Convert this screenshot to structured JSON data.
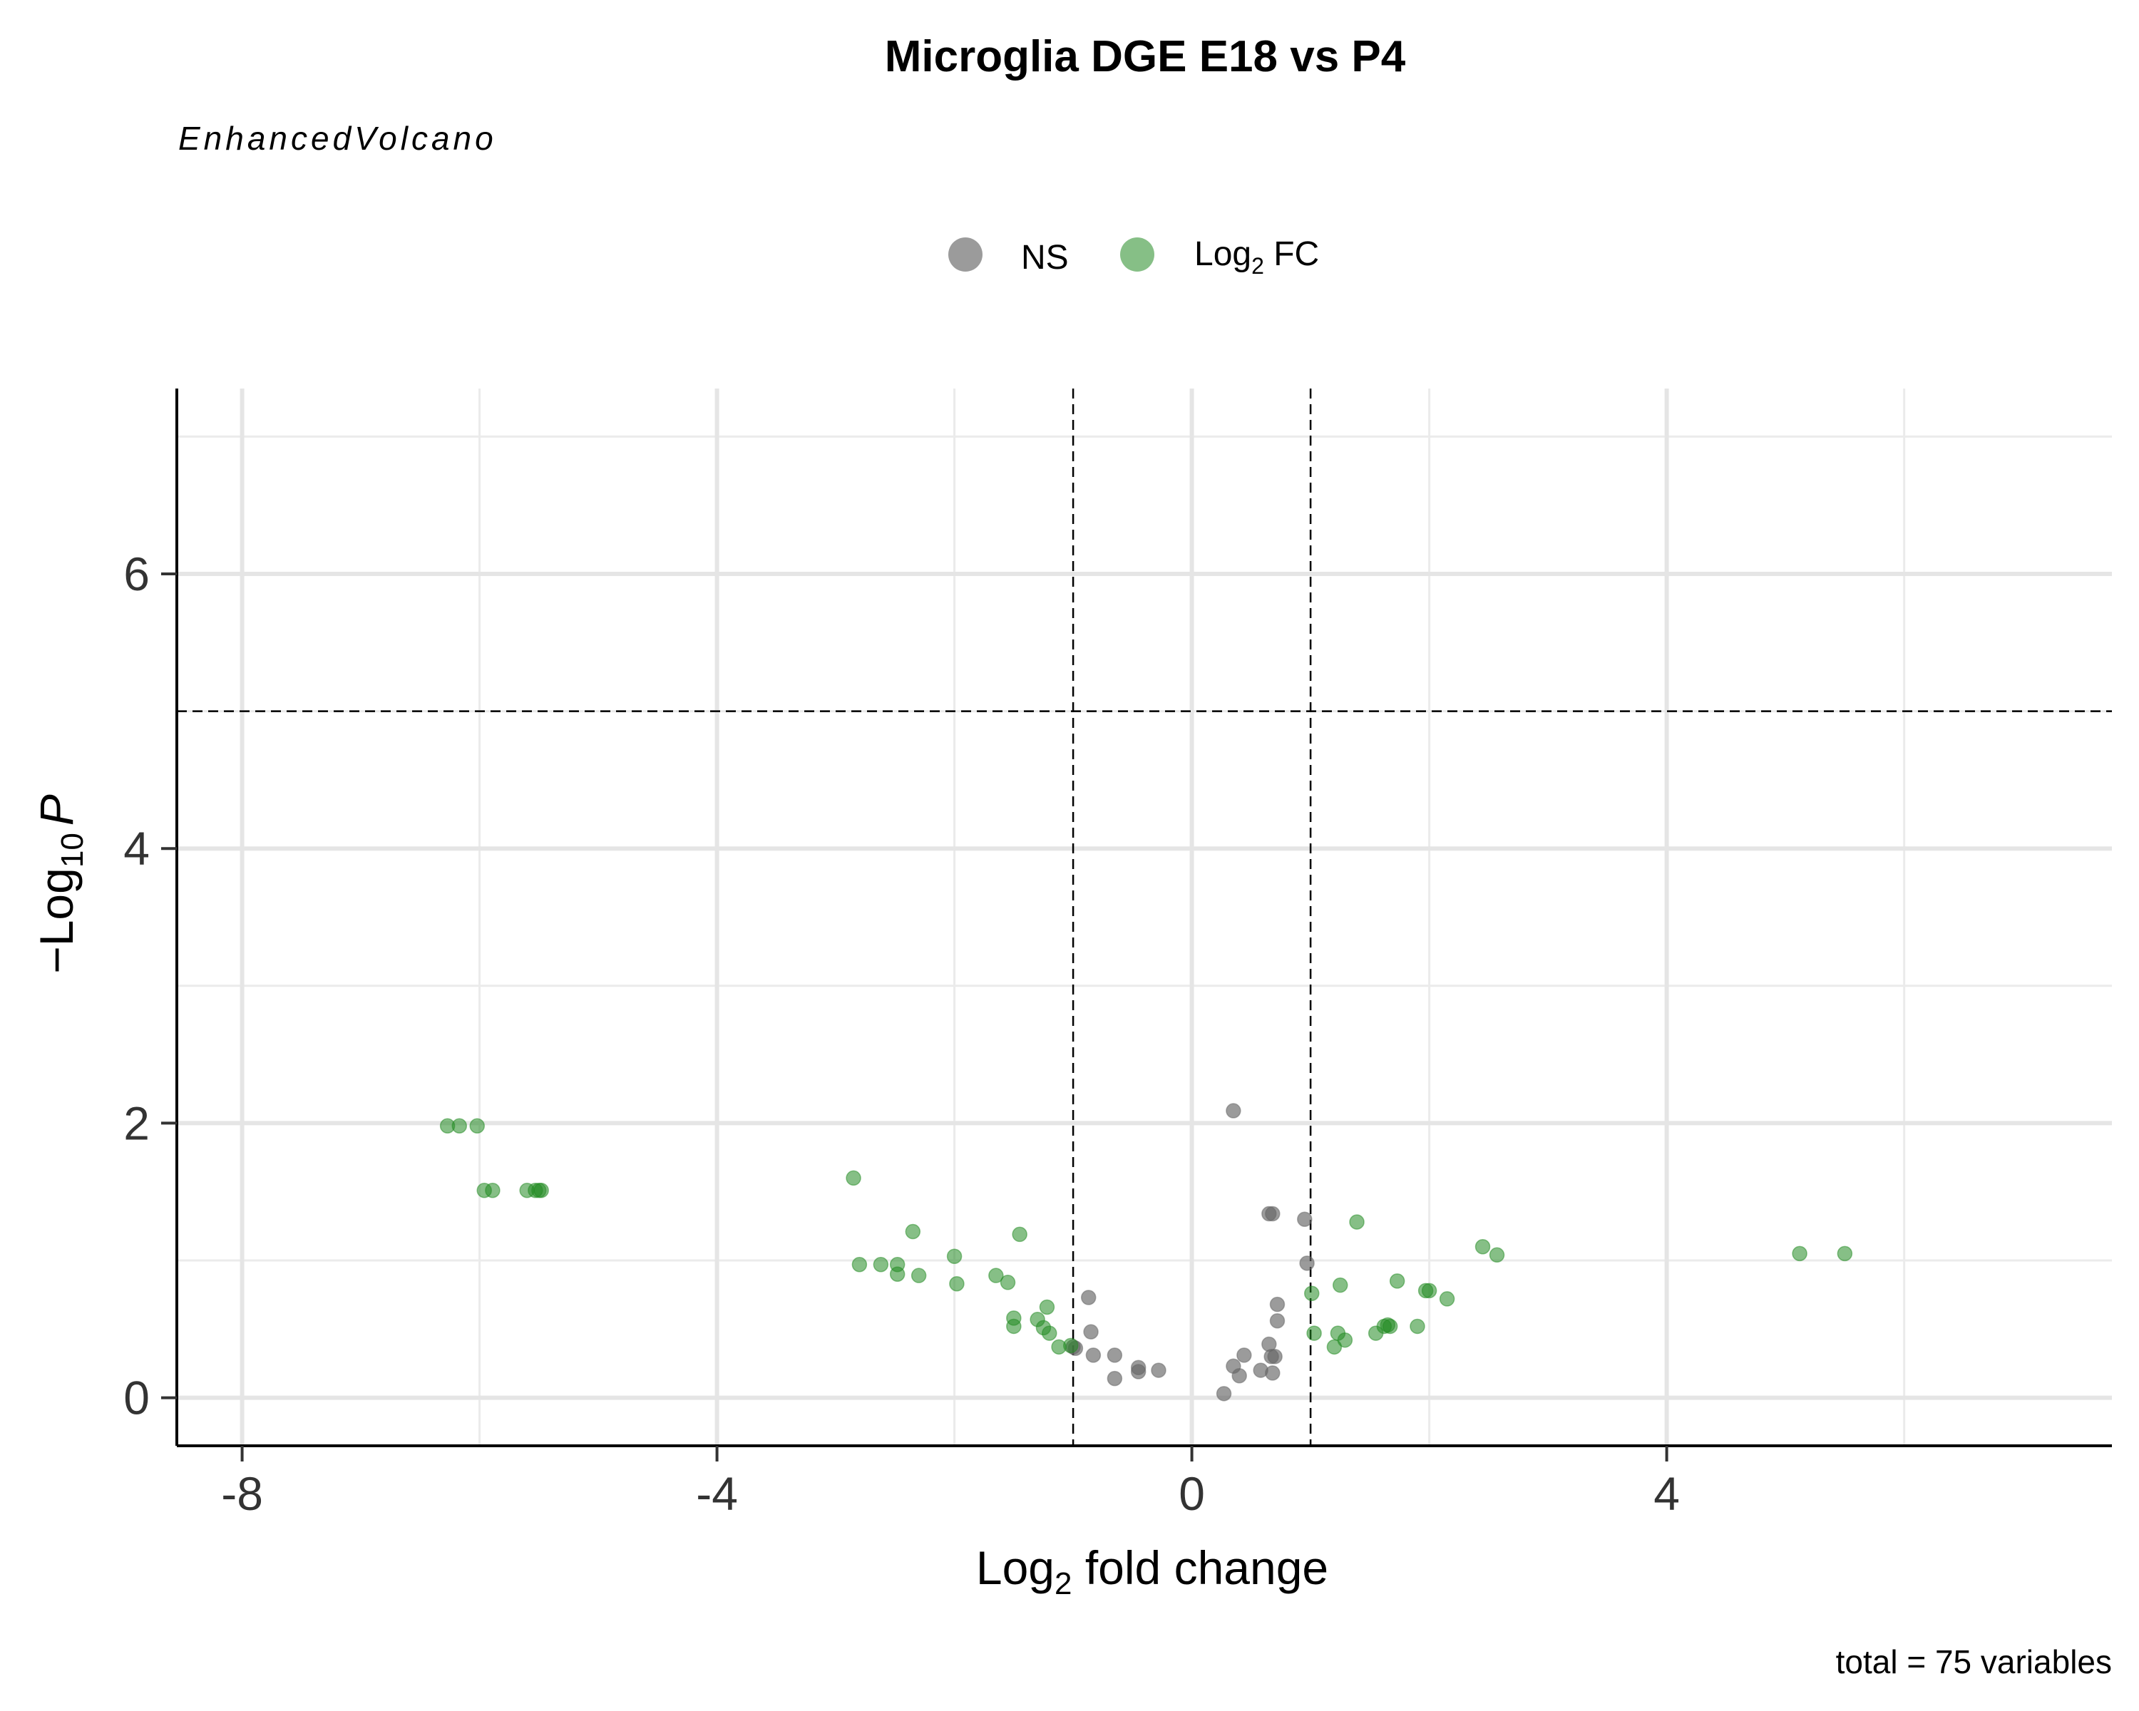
{
  "chart_data": {
    "type": "scatter",
    "title": "Microglia DGE E18 vs P4",
    "subtitle": "EnhancedVolcano",
    "caption": "total = 75 variables",
    "xlabel": {
      "main": "Log",
      "sub": "2",
      "rest": " fold change"
    },
    "ylabel": {
      "prefix": "−Log",
      "sub": "10",
      "italic": "P"
    },
    "xlim": [
      -8.55,
      7.75
    ],
    "ylim": [
      -0.35,
      7.35
    ],
    "x_ticks": [
      -8,
      -4,
      0,
      4
    ],
    "x_tick_labels": [
      "-8",
      "-4",
      "0",
      "4"
    ],
    "y_ticks": [
      0,
      2,
      4,
      6
    ],
    "y_tick_labels": [
      "0",
      "2",
      "4",
      "6"
    ],
    "grid": true,
    "legend_position": "top",
    "cutoffs": {
      "fc": [
        -1,
        1
      ],
      "p": 5
    },
    "legend": [
      {
        "name": "NS",
        "color": "#666666"
      },
      {
        "name": "Log",
        "sub": "2",
        "rest": " FC",
        "color": "#228B22"
      }
    ],
    "series": [
      {
        "name": "NS",
        "color": "#666666",
        "x": [
          0.35,
          0.65,
          0.68,
          0.95,
          0.97,
          0.72,
          0.72,
          -0.87,
          -0.85,
          -1.0,
          -0.98,
          -0.83,
          -0.65,
          -0.45,
          -0.45,
          -0.28,
          -0.65,
          0.27,
          0.35,
          0.4,
          0.44,
          0.58,
          0.65,
          0.67,
          0.7,
          0.68
        ],
        "y": [
          2.09,
          1.34,
          1.34,
          1.3,
          0.98,
          0.68,
          0.56,
          0.73,
          0.48,
          0.37,
          0.36,
          0.31,
          0.31,
          0.22,
          0.19,
          0.2,
          0.14,
          0.03,
          0.23,
          0.16,
          0.31,
          0.2,
          0.39,
          0.3,
          0.3,
          0.18
        ]
      },
      {
        "name": "Log2 FC",
        "color": "#228B22",
        "x": [
          -6.27,
          -6.17,
          -6.02,
          -5.96,
          -5.89,
          -5.6,
          -5.53,
          -5.5,
          -5.48,
          -2.85,
          -2.8,
          -2.62,
          -2.48,
          -2.48,
          -2.35,
          -2.3,
          -2.0,
          -1.98,
          -1.65,
          -1.55,
          -1.45,
          -1.5,
          -1.5,
          -1.3,
          -1.25,
          -1.22,
          -1.2,
          -1.12,
          -1.02,
          1.01,
          1.03,
          1.25,
          1.23,
          1.2,
          1.29,
          1.39,
          1.55,
          1.62,
          1.65,
          1.67,
          1.73,
          1.9,
          1.97,
          2.0,
          2.15,
          2.45,
          2.57,
          5.12,
          5.5
        ],
        "y": [
          1.98,
          1.98,
          1.98,
          1.51,
          1.51,
          1.51,
          1.51,
          1.51,
          1.51,
          1.6,
          0.97,
          0.97,
          0.97,
          0.9,
          1.21,
          0.89,
          1.03,
          0.83,
          0.89,
          0.84,
          1.19,
          0.58,
          0.52,
          0.57,
          0.51,
          0.66,
          0.47,
          0.37,
          0.38,
          0.76,
          0.47,
          0.82,
          0.47,
          0.37,
          0.42,
          1.28,
          0.47,
          0.52,
          0.53,
          0.52,
          0.85,
          0.52,
          0.78,
          0.78,
          0.72,
          1.1,
          1.04,
          1.05,
          1.05
        ]
      }
    ]
  }
}
